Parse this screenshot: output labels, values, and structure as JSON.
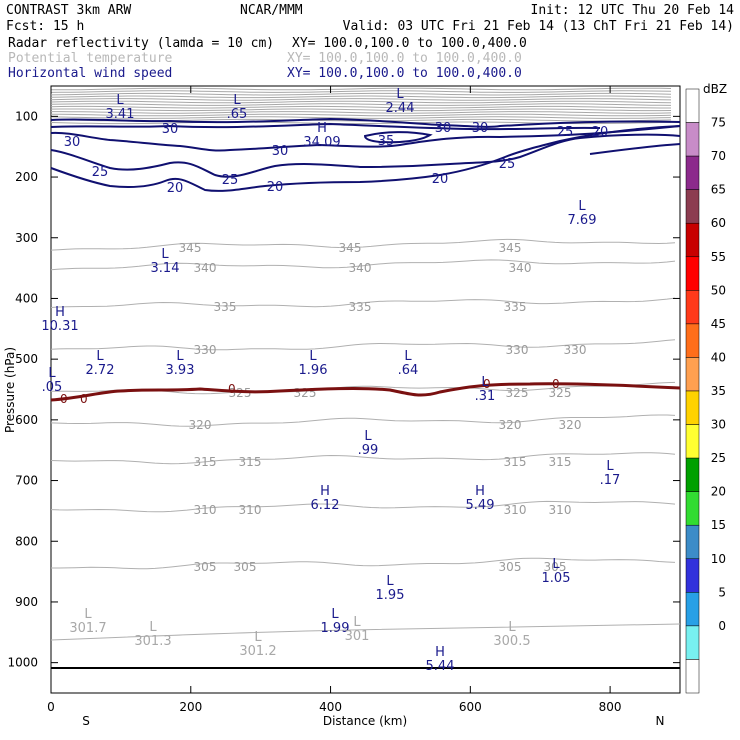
{
  "header": {
    "title_left": "CONTRAST  3km ARW",
    "title_center": "NCAR/MMM",
    "init": "Init: 12 UTC Thu 20 Feb 14",
    "fcst": "Fcst:    15 h",
    "valid": "Valid: 03 UTC Fri 21 Feb 14 (13 ChT Fri 21 Feb 14)",
    "fields": [
      {
        "name": "Radar reflectivity (lamda = 10 cm)",
        "xy": "XY= 100.0,100.0 to 100.0,400.0",
        "color": "#000000"
      },
      {
        "name": "Potential temperature",
        "xy": "XY= 100.0,100.0 to 100.0,400.0",
        "color": "#b8b8b8"
      },
      {
        "name": "Horizontal wind speed",
        "xy": "XY= 100.0,100.0 to 100.0,400.0",
        "color": "#1a1a8c"
      }
    ]
  },
  "chart_data": {
    "type": "line",
    "xlabel": "Distance (km)",
    "ylabel": "Pressure (hPa)",
    "xlim": [
      0,
      900
    ],
    "ylim": [
      1050,
      50
    ],
    "x_ticks": [
      0,
      200,
      400,
      600,
      800
    ],
    "y_ticks": [
      100,
      200,
      300,
      400,
      500,
      600,
      700,
      800,
      900,
      1000
    ],
    "x_end_labels": {
      "left": "S",
      "right": "N"
    },
    "colorbar": {
      "unit": "dBZ",
      "labels": [
        "75",
        "70",
        "65",
        "60",
        "55",
        "50",
        "45",
        "40",
        "35",
        "30",
        "25",
        "20",
        "15",
        "10",
        "5",
        "0"
      ],
      "colors": [
        "#ffffff",
        "#c88cc8",
        "#8c2a8c",
        "#8c3c50",
        "#c80000",
        "#ff0000",
        "#ff3a1a",
        "#ff6e1a",
        "#ffa050",
        "#ffd200",
        "#ffff32",
        "#00a000",
        "#32dc32",
        "#3c8cc8",
        "#3232dc",
        "#28a0e6",
        "#78f0f0",
        "#ffffff"
      ]
    },
    "theta_contours": [
      {
        "value": "345",
        "y": 248,
        "labels_x": [
          190,
          350,
          510
        ]
      },
      {
        "value": "340",
        "y": 268,
        "labels_x": [
          205,
          360,
          520
        ]
      },
      {
        "value": "335",
        "y": 307,
        "labels_x": [
          225,
          360,
          515
        ]
      },
      {
        "value": "330",
        "y": 350,
        "labels_x": [
          205,
          517,
          575
        ]
      },
      {
        "value": "325",
        "y": 393,
        "labels_x": [
          240,
          305,
          517,
          560
        ]
      },
      {
        "value": "320",
        "y": 425,
        "labels_x": [
          200,
          510,
          570
        ]
      },
      {
        "value": "315",
        "y": 462,
        "labels_x": [
          205,
          250,
          515,
          560
        ]
      },
      {
        "value": "310",
        "y": 510,
        "labels_x": [
          205,
          250,
          515,
          560
        ]
      },
      {
        "value": "305",
        "y": 567,
        "labels_x": [
          205,
          245,
          510,
          555
        ]
      }
    ],
    "wind_contours": [
      {
        "value": "30",
        "label_positions": [
          [
            72,
            143
          ],
          [
            170,
            130
          ],
          [
            280,
            152
          ],
          [
            440,
            128
          ],
          [
            480,
            128
          ]
        ]
      },
      {
        "value": "35",
        "label_positions": [
          [
            385,
            142
          ]
        ]
      },
      {
        "value": "25",
        "label_positions": [
          [
            100,
            172
          ],
          [
            230,
            181
          ],
          [
            507,
            165
          ],
          [
            565,
            133
          ]
        ]
      },
      {
        "value": "20",
        "label_positions": [
          [
            175,
            189
          ],
          [
            275,
            188
          ],
          [
            440,
            179
          ],
          [
            600,
            133
          ]
        ]
      }
    ],
    "extrema": [
      {
        "type": "L",
        "value": "3.41",
        "color": "blue",
        "x": 120,
        "y": 104
      },
      {
        "type": "L",
        "value": ".65",
        "color": "blue",
        "x": 237,
        "y": 104
      },
      {
        "type": "L",
        "value": "2.44",
        "color": "blue",
        "x": 400,
        "y": 98
      },
      {
        "type": "H",
        "value": "34.09",
        "color": "blue",
        "x": 322,
        "y": 132
      },
      {
        "type": "L",
        "value": "7.69",
        "color": "blue",
        "x": 582,
        "y": 210
      },
      {
        "type": "L",
        "value": "3.14",
        "color": "blue",
        "x": 165,
        "y": 258
      },
      {
        "type": "H",
        "value": "10.31",
        "color": "blue",
        "x": 60,
        "y": 316
      },
      {
        "type": "L",
        "value": "2.72",
        "color": "blue",
        "x": 100,
        "y": 360
      },
      {
        "type": "L",
        "value": "3.93",
        "color": "blue",
        "x": 180,
        "y": 360
      },
      {
        "type": "L",
        "value": "1.96",
        "color": "blue",
        "x": 313,
        "y": 360
      },
      {
        "type": "L",
        "value": ".64",
        "color": "blue",
        "x": 408,
        "y": 360
      },
      {
        "type": "L",
        "value": ".05",
        "color": "blue",
        "x": 52,
        "y": 377
      },
      {
        "type": "L",
        "value": ".31",
        "color": "blue",
        "x": 485,
        "y": 386
      },
      {
        "type": "L",
        "value": ".99",
        "color": "blue",
        "x": 368,
        "y": 440
      },
      {
        "type": "L",
        "value": ".17",
        "color": "blue",
        "x": 610,
        "y": 470
      },
      {
        "type": "H",
        "value": "6.12",
        "color": "blue",
        "x": 325,
        "y": 495
      },
      {
        "type": "H",
        "value": "5.49",
        "color": "blue",
        "x": 480,
        "y": 495
      },
      {
        "type": "L",
        "value": "1.05",
        "color": "blue",
        "x": 556,
        "y": 568
      },
      {
        "type": "L",
        "value": "1.95",
        "color": "blue",
        "x": 390,
        "y": 585
      },
      {
        "type": "L",
        "value": "1.99",
        "color": "blue",
        "x": 335,
        "y": 618
      },
      {
        "type": "L",
        "value": "301.7",
        "color": "gray",
        "x": 88,
        "y": 618
      },
      {
        "type": "L",
        "value": "301.3",
        "color": "gray",
        "x": 153,
        "y": 631
      },
      {
        "type": "L",
        "value": "301.2",
        "color": "gray",
        "x": 258,
        "y": 641
      },
      {
        "type": "L",
        "value": "301",
        "color": "gray",
        "x": 357,
        "y": 626
      },
      {
        "type": "L",
        "value": "300.5",
        "color": "gray",
        "x": 512,
        "y": 631
      },
      {
        "type": "H",
        "value": "5.44",
        "color": "blue",
        "x": 440,
        "y": 656
      }
    ],
    "reflectivity_contour": {
      "value": "0",
      "pressure_approx": 545,
      "color": "#7a1010"
    }
  }
}
